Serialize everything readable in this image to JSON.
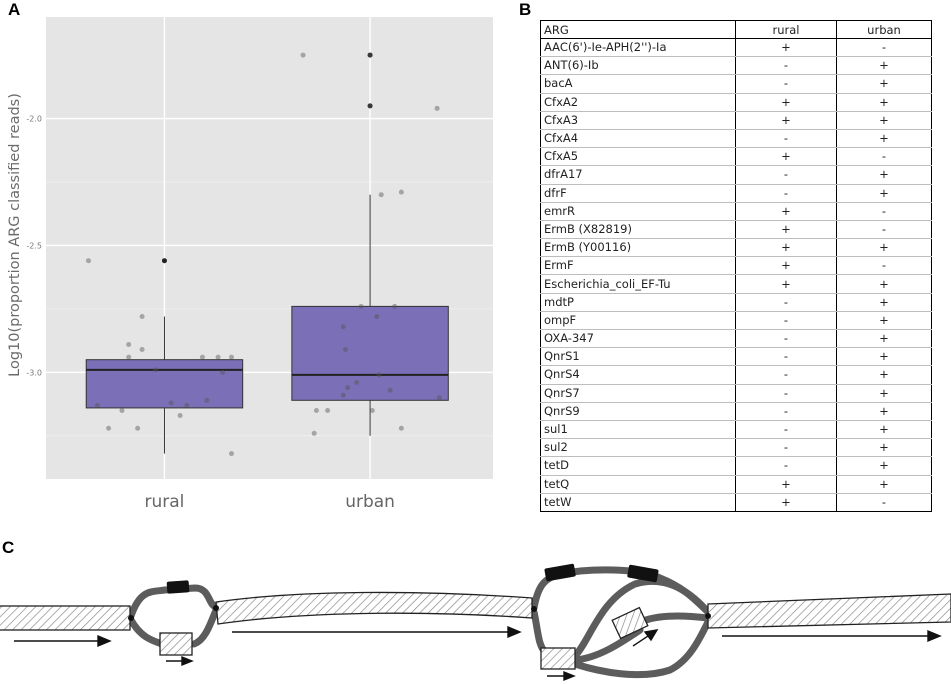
{
  "panels": {
    "a": "A",
    "b": "B",
    "c": "C"
  },
  "chart_data": {
    "type": "boxplot",
    "ylabel": "Log10(proportion ARG classified reads)",
    "xlabel": "",
    "categories": [
      "rural",
      "urban"
    ],
    "y_ticks": [
      -2.0,
      -2.5,
      -3.0
    ],
    "y_tick_labels": [
      "-2.0",
      "-2.5",
      "-3.0"
    ],
    "ylim": [
      -3.42,
      -1.6
    ],
    "grid": true,
    "box_color": "#7b6fb7",
    "background": "#e5e5e5",
    "boxes": [
      {
        "category": "rural",
        "whisker_low": -3.32,
        "q1": -3.14,
        "median": -2.99,
        "q3": -2.95,
        "whisker_high": -2.78,
        "outliers": [
          -2.56
        ]
      },
      {
        "category": "urban",
        "whisker_low": -3.25,
        "q1": -3.11,
        "median": -3.01,
        "q3": -2.74,
        "whisker_high": -2.3,
        "outliers": [
          -1.75,
          -1.95
        ]
      }
    ],
    "jitter_points": [
      {
        "category": "rural",
        "offset": -0.34,
        "y": -2.56
      },
      {
        "category": "rural",
        "offset": -0.3,
        "y": -3.13
      },
      {
        "category": "rural",
        "offset": -0.25,
        "y": -3.22
      },
      {
        "category": "rural",
        "offset": -0.19,
        "y": -3.15
      },
      {
        "category": "rural",
        "offset": -0.16,
        "y": -2.89
      },
      {
        "category": "rural",
        "offset": -0.16,
        "y": -2.94
      },
      {
        "category": "rural",
        "offset": -0.12,
        "y": -3.22
      },
      {
        "category": "rural",
        "offset": -0.1,
        "y": -2.78
      },
      {
        "category": "rural",
        "offset": -0.1,
        "y": -2.91
      },
      {
        "category": "rural",
        "offset": -0.04,
        "y": -2.99
      },
      {
        "category": "rural",
        "offset": 0.03,
        "y": -3.12
      },
      {
        "category": "rural",
        "offset": 0.07,
        "y": -3.17
      },
      {
        "category": "rural",
        "offset": 0.1,
        "y": -3.13
      },
      {
        "category": "rural",
        "offset": 0.17,
        "y": -2.94
      },
      {
        "category": "rural",
        "offset": 0.19,
        "y": -3.11
      },
      {
        "category": "rural",
        "offset": 0.24,
        "y": -2.94
      },
      {
        "category": "rural",
        "offset": 0.26,
        "y": -3.0
      },
      {
        "category": "rural",
        "offset": 0.3,
        "y": -2.94
      },
      {
        "category": "rural",
        "offset": 0.3,
        "y": -3.32
      },
      {
        "category": "urban",
        "offset": -0.3,
        "y": -1.75
      },
      {
        "category": "urban",
        "offset": -0.25,
        "y": -3.24
      },
      {
        "category": "urban",
        "offset": -0.24,
        "y": -3.15
      },
      {
        "category": "urban",
        "offset": -0.19,
        "y": -3.15
      },
      {
        "category": "urban",
        "offset": -0.12,
        "y": -3.09
      },
      {
        "category": "urban",
        "offset": -0.12,
        "y": -2.82
      },
      {
        "category": "urban",
        "offset": -0.11,
        "y": -2.91
      },
      {
        "category": "urban",
        "offset": -0.1,
        "y": -3.06
      },
      {
        "category": "urban",
        "offset": -0.06,
        "y": -3.04
      },
      {
        "category": "urban",
        "offset": -0.04,
        "y": -2.74
      },
      {
        "category": "urban",
        "offset": 0.0,
        "y": -1.75
      },
      {
        "category": "urban",
        "offset": 0.0,
        "y": -1.95
      },
      {
        "category": "urban",
        "offset": 0.01,
        "y": -3.15
      },
      {
        "category": "urban",
        "offset": 0.03,
        "y": -2.78
      },
      {
        "category": "urban",
        "offset": 0.04,
        "y": -3.01
      },
      {
        "category": "urban",
        "offset": 0.05,
        "y": -2.3
      },
      {
        "category": "urban",
        "offset": 0.09,
        "y": -3.07
      },
      {
        "category": "urban",
        "offset": 0.11,
        "y": -2.74
      },
      {
        "category": "urban",
        "offset": 0.14,
        "y": -2.29
      },
      {
        "category": "urban",
        "offset": 0.14,
        "y": -3.22
      },
      {
        "category": "urban",
        "offset": 0.3,
        "y": -1.96
      },
      {
        "category": "urban",
        "offset": 0.31,
        "y": -3.1
      }
    ]
  },
  "table": {
    "headers": [
      "ARG",
      "rural",
      "urban"
    ],
    "rows": [
      [
        "AAC(6')-Ie-APH(2'')-Ia",
        "+",
        "-"
      ],
      [
        "ANT(6)-Ib",
        "-",
        "+"
      ],
      [
        "bacA",
        "-",
        "+"
      ],
      [
        "CfxA2",
        "+",
        "+"
      ],
      [
        "CfxA3",
        "+",
        "+"
      ],
      [
        "CfxA4",
        "-",
        "+"
      ],
      [
        "CfxA5",
        "+",
        "-"
      ],
      [
        "dfrA17",
        "-",
        "+"
      ],
      [
        "dfrF",
        "-",
        "+"
      ],
      [
        "emrR",
        "+",
        "-"
      ],
      [
        "ErmB (X82819)",
        "+",
        "-"
      ],
      [
        "ErmB (Y00116)",
        "+",
        "+"
      ],
      [
        "ErmF",
        "+",
        "-"
      ],
      [
        "Escherichia_coli_EF-Tu",
        "+",
        "+"
      ],
      [
        "mdtP",
        "-",
        "+"
      ],
      [
        "ompF",
        "-",
        "+"
      ],
      [
        "OXA-347",
        "-",
        "+"
      ],
      [
        "QnrS1",
        "-",
        "+"
      ],
      [
        "QnrS4",
        "-",
        "+"
      ],
      [
        "QnrS7",
        "-",
        "+"
      ],
      [
        "QnrS9",
        "-",
        "+"
      ],
      [
        "sul1",
        "-",
        "+"
      ],
      [
        "sul2",
        "-",
        "+"
      ],
      [
        "tetD",
        "-",
        "+"
      ],
      [
        "tetQ",
        "+",
        "+"
      ],
      [
        "tetW",
        "+",
        "-"
      ]
    ]
  }
}
